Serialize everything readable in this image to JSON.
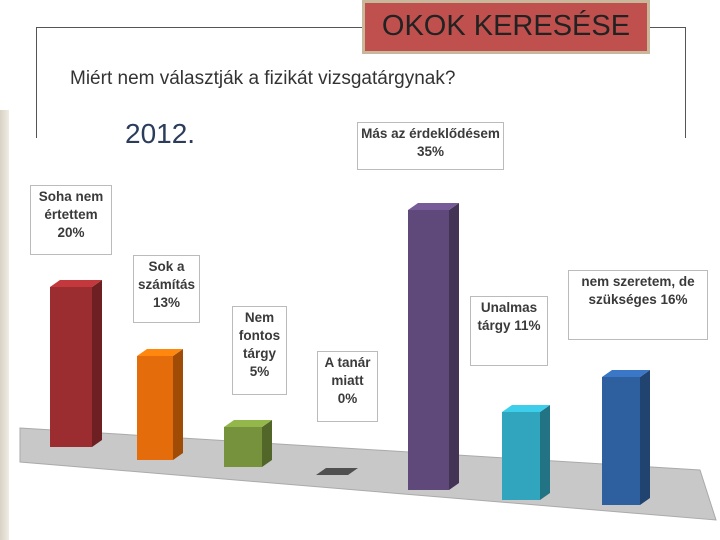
{
  "chart_data": {
    "type": "bar3d",
    "title": "OKOK KERESÉSE",
    "subtitle": "Miért nem választják a fizikát vizsgatárgynak?",
    "annotation": "2012.",
    "categories": [
      "Soha nem értettem",
      "Sok a számítás",
      "Nem fontos tárgy",
      "A tanár miatt",
      "Más az érdeklődésem",
      "Unalmas tárgy",
      "nem szeretem, de szükséges"
    ],
    "values": [
      20,
      13,
      5,
      0,
      35,
      11,
      16
    ],
    "value_labels": [
      "20%",
      "13%",
      "5%",
      "0%",
      "35%",
      "11%",
      "16%"
    ],
    "colors": [
      "#9b2d30",
      "#e46c0a",
      "#76923c",
      "#404040",
      "#5f497a",
      "#31a5bd",
      "#2e5f9e"
    ]
  }
}
